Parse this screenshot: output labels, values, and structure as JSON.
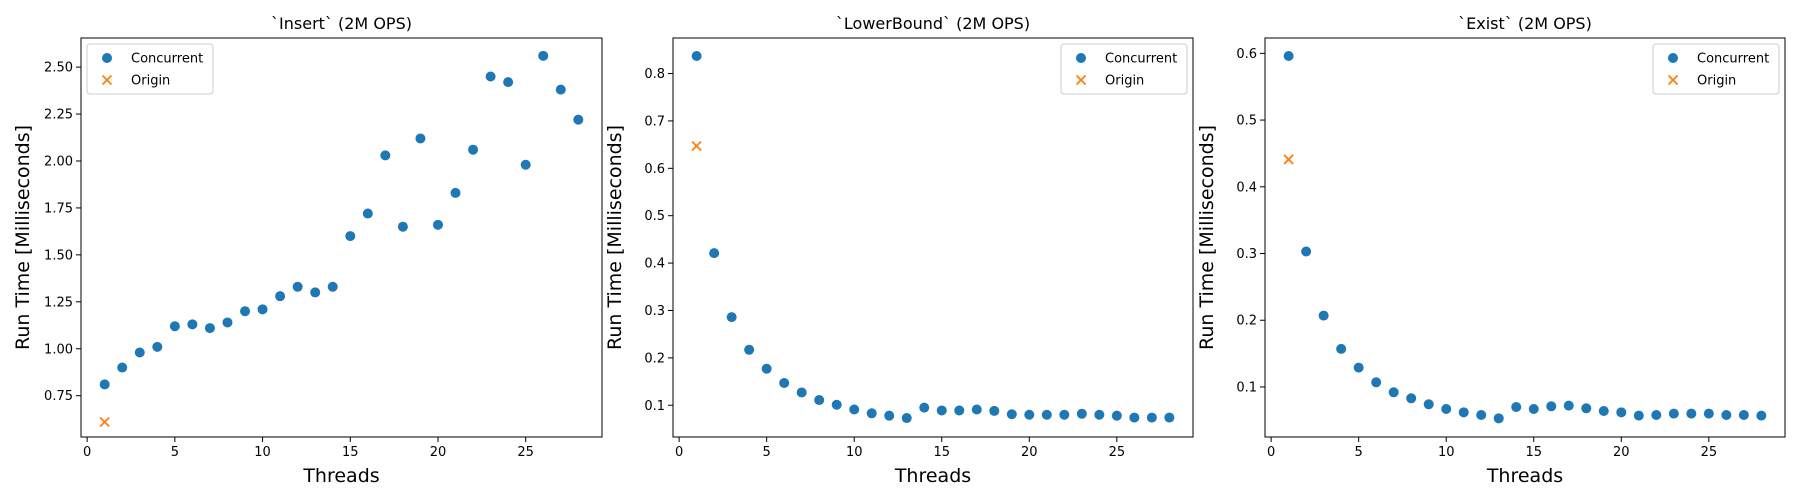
{
  "figure": {
    "background": "#ffffff",
    "colors": {
      "concurrent": "#1f77b4",
      "origin": "#ff7f0e"
    }
  },
  "chart_data": [
    {
      "type": "scatter",
      "title": "`Insert` (2M OPS)",
      "xlabel": "Threads",
      "ylabel": "Run Time [Milliseconds]",
      "xlim": [
        -0.35,
        29.35
      ],
      "ylim": [
        0.53,
        2.655
      ],
      "xticks": [
        0,
        5,
        10,
        15,
        20,
        25
      ],
      "yticks": [
        0.75,
        1.0,
        1.25,
        1.5,
        1.75,
        2.0,
        2.25,
        2.5
      ],
      "ytick_labels": [
        "0.75",
        "1.00",
        "1.25",
        "1.50",
        "1.75",
        "2.00",
        "2.25",
        "2.50"
      ],
      "legend_position": "upper left",
      "series": [
        {
          "name": "Concurrent",
          "marker": "circle",
          "color": "#1f77b4",
          "x": [
            1,
            2,
            3,
            4,
            5,
            6,
            7,
            8,
            9,
            10,
            11,
            12,
            13,
            14,
            15,
            16,
            17,
            18,
            19,
            20,
            21,
            22,
            23,
            24,
            25,
            26,
            27,
            28
          ],
          "y": [
            0.81,
            0.9,
            0.98,
            1.01,
            1.12,
            1.13,
            1.11,
            1.14,
            1.2,
            1.21,
            1.28,
            1.33,
            1.3,
            1.33,
            1.6,
            1.72,
            2.03,
            1.65,
            2.12,
            1.66,
            1.83,
            2.06,
            2.45,
            2.42,
            1.98,
            2.56,
            2.38,
            2.22
          ]
        },
        {
          "name": "Origin",
          "marker": "x",
          "color": "#ff7f0e",
          "x": [
            1
          ],
          "y": [
            0.61
          ]
        }
      ]
    },
    {
      "type": "scatter",
      "title": "`LowerBound` (2M OPS)",
      "xlabel": "Threads",
      "ylabel": "Run Time [Milliseconds]",
      "xlim": [
        -0.35,
        29.35
      ],
      "ylim": [
        0.033,
        0.875
      ],
      "xticks": [
        0,
        5,
        10,
        15,
        20,
        25
      ],
      "yticks": [
        0.1,
        0.2,
        0.3,
        0.4,
        0.5,
        0.6,
        0.7,
        0.8
      ],
      "ytick_labels": [
        "0.1",
        "0.2",
        "0.3",
        "0.4",
        "0.5",
        "0.6",
        "0.7",
        "0.8"
      ],
      "legend_position": "upper right",
      "series": [
        {
          "name": "Concurrent",
          "marker": "circle",
          "color": "#1f77b4",
          "x": [
            1,
            2,
            3,
            4,
            5,
            6,
            7,
            8,
            9,
            10,
            11,
            12,
            13,
            14,
            15,
            16,
            17,
            18,
            19,
            20,
            21,
            22,
            23,
            24,
            25,
            26,
            27,
            28
          ],
          "y": [
            0.837,
            0.421,
            0.286,
            0.217,
            0.177,
            0.147,
            0.127,
            0.111,
            0.101,
            0.091,
            0.083,
            0.078,
            0.073,
            0.095,
            0.089,
            0.089,
            0.091,
            0.088,
            0.081,
            0.08,
            0.08,
            0.08,
            0.082,
            0.08,
            0.078,
            0.074,
            0.074,
            0.074
          ]
        },
        {
          "name": "Origin",
          "marker": "x",
          "color": "#ff7f0e",
          "x": [
            1
          ],
          "y": [
            0.647
          ]
        }
      ]
    },
    {
      "type": "scatter",
      "title": "`Exist` (2M OPS)",
      "xlabel": "Threads",
      "ylabel": "Run Time [Milliseconds]",
      "xlim": [
        -0.35,
        29.35
      ],
      "ylim": [
        0.025,
        0.623
      ],
      "xticks": [
        0,
        5,
        10,
        15,
        20,
        25
      ],
      "yticks": [
        0.1,
        0.2,
        0.3,
        0.4,
        0.5,
        0.6
      ],
      "ytick_labels": [
        "0.1",
        "0.2",
        "0.3",
        "0.4",
        "0.5",
        "0.6"
      ],
      "legend_position": "upper right",
      "series": [
        {
          "name": "Concurrent",
          "marker": "circle",
          "color": "#1f77b4",
          "x": [
            1,
            2,
            3,
            4,
            5,
            6,
            7,
            8,
            9,
            10,
            11,
            12,
            13,
            14,
            15,
            16,
            17,
            18,
            19,
            20,
            21,
            22,
            23,
            24,
            25,
            26,
            27,
            28
          ],
          "y": [
            0.596,
            0.303,
            0.207,
            0.157,
            0.129,
            0.107,
            0.092,
            0.083,
            0.074,
            0.067,
            0.062,
            0.058,
            0.053,
            0.07,
            0.067,
            0.071,
            0.072,
            0.068,
            0.064,
            0.062,
            0.057,
            0.058,
            0.06,
            0.06,
            0.06,
            0.058,
            0.058,
            0.057
          ]
        },
        {
          "name": "Origin",
          "marker": "x",
          "color": "#ff7f0e",
          "x": [
            1
          ],
          "y": [
            0.441
          ]
        }
      ]
    }
  ]
}
